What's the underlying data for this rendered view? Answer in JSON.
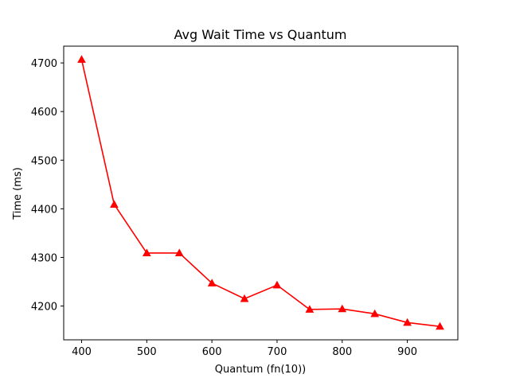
{
  "chart_data": {
    "type": "line",
    "title": "Avg Wait Time vs Quantum",
    "xlabel": "Quantum (fn(10))",
    "ylabel": "Time (ms)",
    "x": [
      400,
      450,
      500,
      550,
      600,
      650,
      700,
      750,
      800,
      850,
      900,
      950
    ],
    "series": [
      {
        "values": [
          4707,
          4409,
          4309,
          4309,
          4247,
          4215,
          4243,
          4193,
          4194,
          4184,
          4166,
          4158
        ],
        "color": "#ff0000",
        "marker": "triangle"
      }
    ],
    "xlim": [
      372.5,
      977.5
    ],
    "ylim": [
      4130.5,
      4734.5
    ],
    "xticks": [
      400,
      500,
      600,
      700,
      800,
      900
    ],
    "yticks": [
      4200,
      4300,
      4400,
      4500,
      4600,
      4700
    ],
    "grid": false,
    "legend": false
  }
}
